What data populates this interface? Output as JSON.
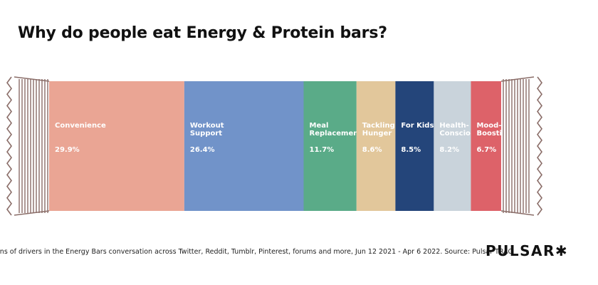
{
  "title": "Why do people eat Energy & Protein bars?",
  "footnote": "ons of drivers in the Energy Bars conversation across Twitter, Reddit, Tumblr, Pinterest, forums and more, Jun 12 2021 - Apr 6 2022. Source: Pulsar TRAC",
  "logo": "PULSAR✱",
  "chart_data": {
    "type": "bar",
    "orientation": "horizontal-stacked",
    "categories": [
      "Convenience",
      "Workout Support",
      "Meal Replacement",
      "Tackling Hunger",
      "For Kids",
      "Health-Conscious",
      "Mood-Boosting"
    ],
    "label_lines": [
      [
        "Convenience"
      ],
      [
        "Workout",
        "Support"
      ],
      [
        "Meal",
        "Replacement"
      ],
      [
        "Tackling",
        "Hunger"
      ],
      [
        "For Kids"
      ],
      [
        "Health-",
        "Conscious"
      ],
      [
        "Mood-",
        "Boosting"
      ]
    ],
    "values": [
      29.9,
      26.4,
      11.7,
      8.6,
      8.5,
      8.2,
      6.7
    ],
    "value_labels": [
      "29.9%",
      "26.4%",
      "11.7%",
      "8.6%",
      "8.5%",
      "8.2%",
      "6.7%"
    ],
    "colors": [
      "#eaa594",
      "#7193c9",
      "#5aab88",
      "#e2c79b",
      "#24457a",
      "#c9d3db",
      "#dd6269"
    ],
    "text_colors": [
      "#ffffff",
      "#ffffff",
      "#ffffff",
      "#ffffff",
      "#ffffff",
      "#ffffff",
      "#ffffff"
    ],
    "wrapper_color": "#8a6d68",
    "legend": "none",
    "grid": false
  }
}
